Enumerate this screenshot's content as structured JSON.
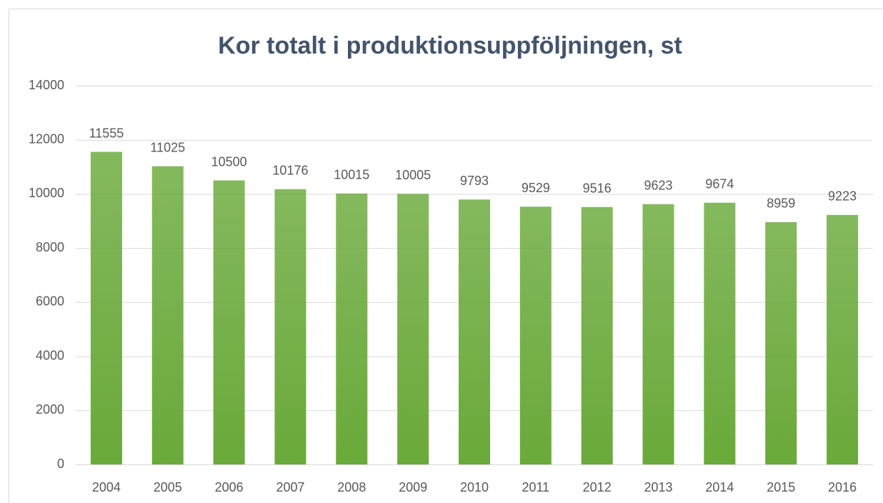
{
  "chart_data": {
    "type": "bar",
    "title": "Kor totalt i produktionsuppföljningen, st",
    "categories": [
      "2004",
      "2005",
      "2006",
      "2007",
      "2008",
      "2009",
      "2010",
      "2011",
      "2012",
      "2013",
      "2014",
      "2015",
      "2016"
    ],
    "values": [
      11555,
      11025,
      10500,
      10176,
      10015,
      10005,
      9793,
      9529,
      9516,
      9623,
      9674,
      8959,
      9223
    ],
    "color": "#6aa93a",
    "ylim": [
      0,
      14000
    ],
    "yticks": [
      0,
      2000,
      4000,
      6000,
      8000,
      10000,
      12000,
      14000
    ],
    "grid": true
  }
}
